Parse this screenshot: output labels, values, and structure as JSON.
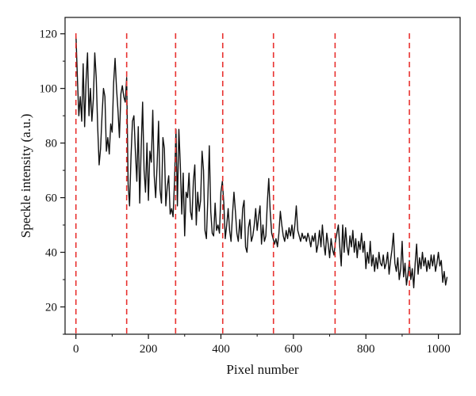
{
  "chart_data": {
    "type": "line",
    "title": "",
    "xlabel": "Pixel number",
    "ylabel": "Speckle intensity (a.u.)",
    "xlim": [
      -30,
      1060
    ],
    "ylim": [
      10,
      126
    ],
    "xticks": [
      0,
      200,
      400,
      600,
      800,
      1000
    ],
    "yticks": [
      20,
      40,
      60,
      80,
      100,
      120
    ],
    "grid": false,
    "line_color": "#111111",
    "marker_color": "#e8312f",
    "markers": {
      "style": "dashed-vertical",
      "x": [
        0,
        140,
        275,
        405,
        545,
        715,
        920
      ]
    },
    "series": [
      {
        "values": [
          [
            0,
            120
          ],
          [
            4,
            104
          ],
          [
            8,
            90
          ],
          [
            12,
            97
          ],
          [
            16,
            88
          ],
          [
            20,
            109
          ],
          [
            24,
            86
          ],
          [
            28,
            103
          ],
          [
            32,
            113
          ],
          [
            36,
            90
          ],
          [
            40,
            100
          ],
          [
            44,
            88
          ],
          [
            48,
            96
          ],
          [
            52,
            113
          ],
          [
            56,
            104
          ],
          [
            60,
            86
          ],
          [
            64,
            72
          ],
          [
            68,
            78
          ],
          [
            72,
            90
          ],
          [
            76,
            100
          ],
          [
            80,
            97
          ],
          [
            84,
            77
          ],
          [
            88,
            82
          ],
          [
            92,
            76
          ],
          [
            96,
            87
          ],
          [
            100,
            84
          ],
          [
            104,
            102
          ],
          [
            108,
            111
          ],
          [
            112,
            100
          ],
          [
            116,
            92
          ],
          [
            120,
            82
          ],
          [
            124,
            98
          ],
          [
            128,
            101
          ],
          [
            132,
            97
          ],
          [
            136,
            95
          ],
          [
            140,
            104
          ],
          [
            144,
            65
          ],
          [
            148,
            57
          ],
          [
            152,
            75
          ],
          [
            156,
            88
          ],
          [
            160,
            90
          ],
          [
            164,
            77
          ],
          [
            168,
            66
          ],
          [
            172,
            86
          ],
          [
            176,
            58
          ],
          [
            180,
            78
          ],
          [
            184,
            95
          ],
          [
            188,
            70
          ],
          [
            192,
            62
          ],
          [
            196,
            80
          ],
          [
            200,
            59
          ],
          [
            204,
            77
          ],
          [
            208,
            73
          ],
          [
            212,
            92
          ],
          [
            216,
            68
          ],
          [
            220,
            60
          ],
          [
            224,
            72
          ],
          [
            228,
            88
          ],
          [
            232,
            63
          ],
          [
            236,
            58
          ],
          [
            240,
            82
          ],
          [
            244,
            78
          ],
          [
            248,
            57
          ],
          [
            252,
            64
          ],
          [
            256,
            68
          ],
          [
            260,
            54
          ],
          [
            264,
            56
          ],
          [
            268,
            53
          ],
          [
            272,
            66
          ],
          [
            276,
            85
          ],
          [
            280,
            57
          ],
          [
            284,
            85
          ],
          [
            288,
            72
          ],
          [
            292,
            54
          ],
          [
            296,
            69
          ],
          [
            300,
            46
          ],
          [
            304,
            62
          ],
          [
            308,
            60
          ],
          [
            312,
            69
          ],
          [
            316,
            55
          ],
          [
            320,
            52
          ],
          [
            324,
            66
          ],
          [
            328,
            72
          ],
          [
            332,
            50
          ],
          [
            336,
            62
          ],
          [
            340,
            55
          ],
          [
            344,
            59
          ],
          [
            348,
            77
          ],
          [
            352,
            70
          ],
          [
            356,
            48
          ],
          [
            360,
            45
          ],
          [
            364,
            60
          ],
          [
            368,
            79
          ],
          [
            372,
            55
          ],
          [
            376,
            47
          ],
          [
            380,
            46
          ],
          [
            384,
            58
          ],
          [
            388,
            48
          ],
          [
            392,
            50
          ],
          [
            396,
            47
          ],
          [
            400,
            62
          ],
          [
            404,
            66
          ],
          [
            408,
            58
          ],
          [
            412,
            45
          ],
          [
            416,
            50
          ],
          [
            420,
            56
          ],
          [
            424,
            48
          ],
          [
            428,
            44
          ],
          [
            432,
            54
          ],
          [
            436,
            62
          ],
          [
            440,
            55
          ],
          [
            444,
            47
          ],
          [
            448,
            44
          ],
          [
            452,
            52
          ],
          [
            456,
            45
          ],
          [
            460,
            56
          ],
          [
            464,
            59
          ],
          [
            468,
            42
          ],
          [
            472,
            40
          ],
          [
            476,
            49
          ],
          [
            480,
            52
          ],
          [
            484,
            44
          ],
          [
            488,
            46
          ],
          [
            492,
            50
          ],
          [
            496,
            56
          ],
          [
            500,
            48
          ],
          [
            504,
            53
          ],
          [
            508,
            57
          ],
          [
            512,
            43
          ],
          [
            516,
            50
          ],
          [
            520,
            44
          ],
          [
            524,
            46
          ],
          [
            528,
            58
          ],
          [
            532,
            67
          ],
          [
            536,
            55
          ],
          [
            540,
            47
          ],
          [
            544,
            45
          ],
          [
            548,
            43
          ],
          [
            552,
            45
          ],
          [
            556,
            42
          ],
          [
            560,
            47
          ],
          [
            564,
            55
          ],
          [
            568,
            50
          ],
          [
            572,
            46
          ],
          [
            576,
            44
          ],
          [
            580,
            48
          ],
          [
            584,
            45
          ],
          [
            588,
            49
          ],
          [
            592,
            46
          ],
          [
            596,
            50
          ],
          [
            600,
            45
          ],
          [
            604,
            50
          ],
          [
            608,
            57
          ],
          [
            612,
            48
          ],
          [
            616,
            46
          ],
          [
            620,
            44
          ],
          [
            624,
            47
          ],
          [
            628,
            45
          ],
          [
            632,
            46
          ],
          [
            636,
            44
          ],
          [
            640,
            47
          ],
          [
            644,
            45
          ],
          [
            648,
            42
          ],
          [
            652,
            46
          ],
          [
            656,
            44
          ],
          [
            660,
            47
          ],
          [
            664,
            40
          ],
          [
            668,
            43
          ],
          [
            672,
            48
          ],
          [
            676,
            42
          ],
          [
            680,
            50
          ],
          [
            684,
            43
          ],
          [
            688,
            39
          ],
          [
            692,
            47
          ],
          [
            696,
            43
          ],
          [
            700,
            38
          ],
          [
            704,
            45
          ],
          [
            708,
            41
          ],
          [
            712,
            39
          ],
          [
            716,
            44
          ],
          [
            720,
            47
          ],
          [
            724,
            50
          ],
          [
            728,
            42
          ],
          [
            732,
            35
          ],
          [
            736,
            50
          ],
          [
            740,
            40
          ],
          [
            744,
            49
          ],
          [
            748,
            42
          ],
          [
            752,
            39
          ],
          [
            756,
            46
          ],
          [
            760,
            42
          ],
          [
            764,
            48
          ],
          [
            768,
            40
          ],
          [
            772,
            45
          ],
          [
            776,
            38
          ],
          [
            780,
            44
          ],
          [
            784,
            41
          ],
          [
            788,
            47
          ],
          [
            792,
            40
          ],
          [
            796,
            44
          ],
          [
            800,
            34
          ],
          [
            804,
            40
          ],
          [
            808,
            36
          ],
          [
            812,
            44
          ],
          [
            816,
            35
          ],
          [
            820,
            39
          ],
          [
            824,
            33
          ],
          [
            828,
            38
          ],
          [
            832,
            34
          ],
          [
            836,
            40
          ],
          [
            840,
            36
          ],
          [
            844,
            35
          ],
          [
            848,
            39
          ],
          [
            852,
            34
          ],
          [
            856,
            36
          ],
          [
            860,
            40
          ],
          [
            864,
            32
          ],
          [
            868,
            37
          ],
          [
            872,
            41
          ],
          [
            876,
            47
          ],
          [
            880,
            36
          ],
          [
            884,
            33
          ],
          [
            888,
            38
          ],
          [
            892,
            30
          ],
          [
            896,
            34
          ],
          [
            900,
            44
          ],
          [
            904,
            31
          ],
          [
            908,
            36
          ],
          [
            912,
            28
          ],
          [
            916,
            32
          ],
          [
            920,
            37
          ],
          [
            924,
            30
          ],
          [
            928,
            34
          ],
          [
            932,
            27
          ],
          [
            936,
            36
          ],
          [
            940,
            43
          ],
          [
            944,
            32
          ],
          [
            948,
            38
          ],
          [
            952,
            34
          ],
          [
            956,
            40
          ],
          [
            960,
            35
          ],
          [
            964,
            38
          ],
          [
            968,
            33
          ],
          [
            972,
            37
          ],
          [
            976,
            34
          ],
          [
            980,
            39
          ],
          [
            984,
            35
          ],
          [
            988,
            39
          ],
          [
            992,
            33
          ],
          [
            996,
            36
          ],
          [
            1000,
            40
          ],
          [
            1004,
            35
          ],
          [
            1008,
            37
          ],
          [
            1012,
            29
          ],
          [
            1016,
            33
          ],
          [
            1020,
            28
          ],
          [
            1024,
            31
          ]
        ]
      }
    ]
  }
}
